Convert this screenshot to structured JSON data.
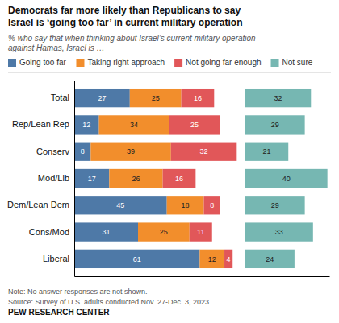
{
  "chart_data": {
    "type": "bar",
    "orientation": "horizontal",
    "stacked": true,
    "title": "Democrats far more likely than Republicans to say\nIsrael is ‘going too far’ in current military operation",
    "subtitle": "% who say that when thinking about Israel’s current military operation\nagainst Hamas, Israel is …",
    "categories": [
      "Total",
      "Rep/Lean Rep",
      "Conserv",
      "Mod/Lib",
      "Dem/Lean Dem",
      "Cons/Mod",
      "Liberal"
    ],
    "series": [
      {
        "name": "Going too far",
        "values": [
          27,
          12,
          8,
          17,
          45,
          31,
          61
        ]
      },
      {
        "name": "Taking right approach",
        "values": [
          25,
          34,
          39,
          26,
          18,
          25,
          12
        ]
      },
      {
        "name": "Not going far enough",
        "values": [
          16,
          25,
          32,
          16,
          8,
          11,
          4
        ]
      },
      {
        "name": "Not sure",
        "values": [
          32,
          29,
          21,
          40,
          29,
          33,
          24
        ]
      }
    ],
    "xlim": [
      0,
      124
    ],
    "tick_labels": "y",
    "data_labels": true,
    "legend": "top",
    "annotations": [
      "Note: No answer responses are not shown.",
      "Source: Survey of U.S. adults conducted Nov. 27-Dec. 3, 2023.",
      "PEW RESEARCH CENTER"
    ]
  }
}
